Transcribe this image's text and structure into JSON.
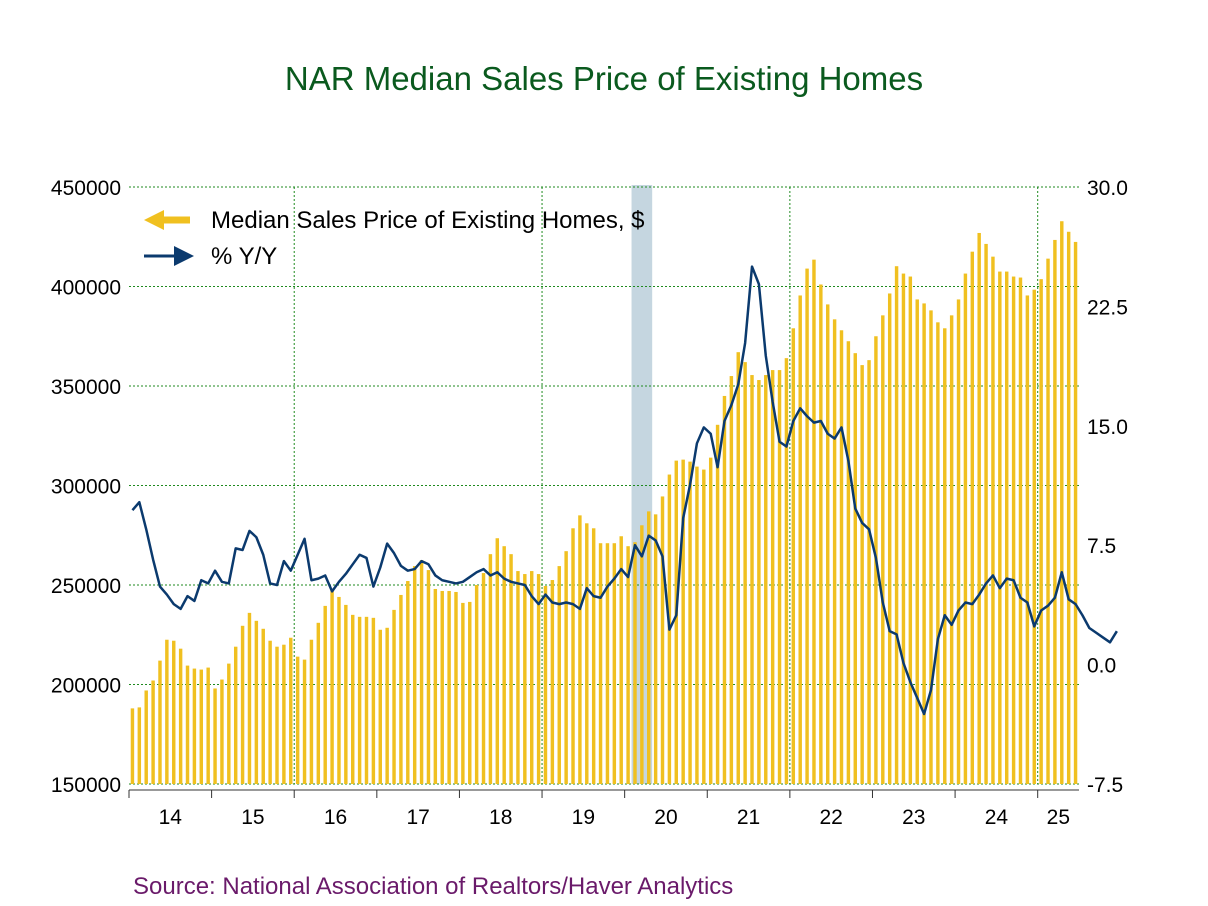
{
  "chart_data": {
    "type": "bar",
    "title": "NAR Median Sales Price of Existing Homes",
    "source": "Source:  National Association of Realtors/Haver Analytics",
    "colors": {
      "title": "#0a5a1e",
      "source": "#6a1a6a",
      "bars": "#f0c020",
      "line": "#0b3a6e",
      "grid": "#1f8a1f",
      "recession": "#c5d6e0"
    },
    "legend": {
      "placement": "top-left",
      "entries": [
        "Median Sales Price of Existing Homes, $",
        "% Y/Y"
      ]
    },
    "grid": true,
    "y_left": {
      "ylim": [
        150000,
        450000
      ],
      "ticks": [
        "450000",
        "400000",
        "350000",
        "300000",
        "250000",
        "200000",
        "150000"
      ]
    },
    "y_right": {
      "ylim": [
        -7.5,
        30.0
      ],
      "ticks": [
        "30.0",
        "22.5",
        "15.0",
        "7.5",
        "0.0",
        "-7.5"
      ]
    },
    "x": {
      "year_labels": [
        "14",
        "15",
        "16",
        "17",
        "18",
        "19",
        "20",
        "21",
        "22",
        "23",
        "24",
        "25"
      ],
      "start": "2014-01",
      "end": "2025-06"
    },
    "recession": [
      "2020-02",
      "2020-04"
    ],
    "series": [
      {
        "name": "Median Sales Price of Existing Homes, $",
        "type": "bar",
        "values": [
          188000,
          188500,
          197000,
          202000,
          212000,
          222500,
          222000,
          218000,
          209500,
          208000,
          207500,
          208500,
          198000,
          202500,
          210500,
          219000,
          229500,
          236000,
          232000,
          228000,
          222000,
          219000,
          220000,
          223500,
          214000,
          212500,
          222500,
          231000,
          239500,
          247500,
          244000,
          240000,
          235000,
          234000,
          234000,
          233500,
          227500,
          228500,
          237500,
          245000,
          252000,
          259500,
          262500,
          257500,
          248000,
          247000,
          247000,
          246500,
          241000,
          241500,
          250000,
          256000,
          265500,
          273500,
          269500,
          265500,
          257000,
          255500,
          257000,
          255500,
          249500,
          252500,
          259500,
          267000,
          278500,
          285000,
          281000,
          278500,
          271000,
          271000,
          271000,
          274500,
          269500,
          271500,
          280000,
          287000,
          285500,
          294500,
          305500,
          312500,
          313000,
          312000,
          309500,
          308000,
          314000,
          330500,
          345000,
          355000,
          367000,
          362000,
          355500,
          353000,
          355500,
          358000,
          358000,
          364000,
          379000,
          395500,
          409000,
          413500,
          401000,
          391000,
          383500,
          378000,
          372500,
          366500,
          360500,
          363000,
          375000,
          385500,
          396500,
          410200,
          406500,
          405000,
          393500,
          391500,
          388000,
          382000,
          379000,
          385500,
          393500,
          406500,
          417500,
          426900,
          421400,
          415000,
          407500,
          407500,
          405000,
          404500,
          395500,
          398400,
          403700,
          414000,
          423400,
          432800,
          427500,
          422400
        ],
        "start": "2014-01"
      },
      {
        "name": "% Y/Y",
        "type": "line",
        "values": [
          9.7,
          10.2,
          8.5,
          6.6,
          4.9,
          4.4,
          3.8,
          3.5,
          4.3,
          4.0,
          5.3,
          5.1,
          5.9,
          5.2,
          5.1,
          7.3,
          7.2,
          8.4,
          8.0,
          6.9,
          5.1,
          5.0,
          6.5,
          5.9,
          6.9,
          7.9,
          5.3,
          5.4,
          5.6,
          4.6,
          5.2,
          5.7,
          6.3,
          6.9,
          6.7,
          4.9,
          6.1,
          7.6,
          7.0,
          6.2,
          5.9,
          6.0,
          6.5,
          6.3,
          5.6,
          5.3,
          5.2,
          5.1,
          5.2,
          5.5,
          5.8,
          6.0,
          5.6,
          5.8,
          5.4,
          5.2,
          5.1,
          5.0,
          4.3,
          3.8,
          4.4,
          3.9,
          3.8,
          3.9,
          3.8,
          3.5,
          4.8,
          4.3,
          4.2,
          4.9,
          5.4,
          6.0,
          5.5,
          7.5,
          6.8,
          8.1,
          7.8,
          6.8,
          2.2,
          3.1,
          9.2,
          11.3,
          13.9,
          14.9,
          14.5,
          12.4,
          15.3,
          16.3,
          17.6,
          20.2,
          25.0,
          23.9,
          19.4,
          16.5,
          14.0,
          13.7,
          15.3,
          16.1,
          15.6,
          15.2,
          15.3,
          14.5,
          14.2,
          14.9,
          12.8,
          9.8,
          8.9,
          8.5,
          6.7,
          3.9,
          2.1,
          1.9,
          0.1,
          -1.1,
          -2.1,
          -3.1,
          -1.6,
          1.6,
          3.1,
          2.5,
          3.4,
          3.9,
          3.8,
          4.4,
          5.1,
          5.6,
          4.8,
          5.4,
          5.3,
          4.2,
          3.9,
          2.4,
          3.4,
          3.7,
          4.2,
          5.8,
          4.1,
          3.8,
          3.1,
          2.3,
          2.0,
          1.7,
          1.4,
          2.1
        ],
        "start": "2014-01"
      }
    ]
  }
}
